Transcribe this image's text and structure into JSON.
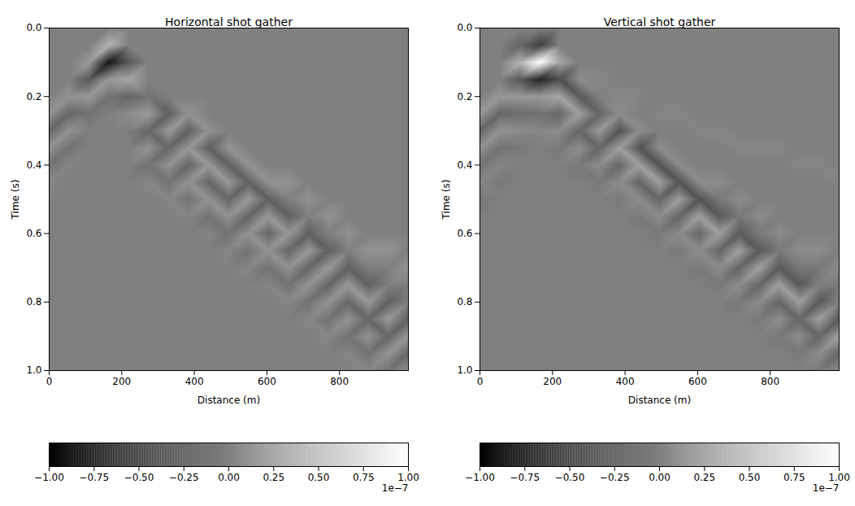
{
  "chart_data": [
    {
      "type": "heatmap",
      "title": "Horizontal shot gather",
      "x_label": "Distance (m)",
      "y_label": "Time (s)",
      "x": [
        0,
        55,
        110,
        165,
        220,
        275,
        330,
        385,
        440,
        495,
        550,
        605,
        660,
        715,
        770,
        825,
        880,
        935,
        990
      ],
      "y": [
        0,
        0.05,
        0.1,
        0.15,
        0.2,
        0.25,
        0.3,
        0.35,
        0.4,
        0.45,
        0.5,
        0.55,
        0.6,
        0.65,
        0.7,
        0.75,
        0.8,
        0.85,
        0.9,
        0.95,
        1.0
      ],
      "values": [
        [
          0,
          0,
          0,
          0,
          0,
          0,
          0,
          0,
          0,
          0,
          0,
          0,
          0,
          0,
          0,
          0,
          0,
          0,
          0
        ],
        [
          0,
          0,
          0,
          4e-08,
          0,
          0,
          0,
          0,
          0,
          0,
          0,
          0,
          0,
          0,
          0,
          0,
          0,
          0,
          0
        ],
        [
          0,
          0,
          2e-08,
          -8e-08,
          -3e-08,
          0,
          0,
          0,
          0,
          0,
          0,
          0,
          0,
          0,
          0,
          0,
          0,
          0,
          0
        ],
        [
          0,
          0,
          -3e-08,
          2e-08,
          3e-08,
          0,
          0,
          0,
          0,
          0,
          0,
          0,
          0,
          0,
          0,
          0,
          0,
          0,
          0
        ],
        [
          0,
          1.5e-08,
          2e-08,
          -1e-08,
          -2e-08,
          -1e-08,
          0,
          0,
          0,
          0,
          0,
          0,
          0,
          0,
          0,
          0,
          0,
          0,
          0
        ],
        [
          1.5e-08,
          -2e-08,
          -1e-08,
          0,
          1e-08,
          2e-08,
          -2.5e-08,
          1.5e-08,
          0,
          0,
          0,
          0,
          0,
          0,
          0,
          0,
          0,
          0,
          0
        ],
        [
          -2e-08,
          1.5e-08,
          0,
          0,
          0,
          -2e-08,
          2e-08,
          -2.5e-08,
          1.5e-08,
          0,
          0,
          0,
          0,
          0,
          0,
          0,
          0,
          0,
          0
        ],
        [
          1.5e-08,
          -1e-08,
          0,
          0,
          0,
          1.5e-08,
          -2e-08,
          2e-08,
          -2.5e-08,
          1.5e-08,
          0,
          0,
          0,
          0,
          0,
          0,
          0,
          0,
          0
        ],
        [
          -1e-08,
          5e-09,
          0,
          0,
          0,
          -1e-08,
          1.5e-08,
          -2e-08,
          2e-08,
          -2.5e-08,
          1.5e-08,
          0,
          0,
          0,
          0,
          0,
          0,
          0,
          0
        ],
        [
          5e-09,
          0,
          0,
          0,
          0,
          5e-09,
          -1e-08,
          1.5e-08,
          -2e-08,
          2e-08,
          -2.5e-08,
          1.5e-08,
          1.5e-08,
          0,
          0,
          0,
          0,
          0,
          0
        ],
        [
          0,
          0,
          0,
          0,
          0,
          0,
          5e-09,
          -1e-08,
          1.5e-08,
          -2e-08,
          2e-08,
          -2.5e-08,
          0,
          1.5e-08,
          0,
          0,
          0,
          0,
          0
        ],
        [
          0,
          0,
          0,
          0,
          0,
          0,
          0,
          5e-09,
          -1e-08,
          1.5e-08,
          -2e-08,
          2e-08,
          -2.5e-08,
          0,
          1.5e-08,
          0,
          0,
          0,
          0
        ],
        [
          0,
          0,
          0,
          0,
          0,
          0,
          0,
          0,
          5e-09,
          -1e-08,
          1.5e-08,
          -2e-08,
          2e-08,
          -2.5e-08,
          0,
          1.5e-08,
          0,
          0,
          0
        ],
        [
          0,
          0,
          0,
          0,
          0,
          0,
          0,
          0,
          0,
          5e-09,
          -1e-08,
          1.5e-08,
          -2e-08,
          2e-08,
          -2.5e-08,
          0,
          1.5e-08,
          1.5e-08,
          0
        ],
        [
          0,
          0,
          0,
          0,
          0,
          0,
          0,
          0,
          0,
          0,
          5e-09,
          -1e-08,
          1.5e-08,
          -2e-08,
          2e-08,
          -2.5e-08,
          0,
          0,
          1.5e-08
        ],
        [
          0,
          0,
          0,
          0,
          0,
          0,
          0,
          0,
          0,
          0,
          0,
          5e-09,
          -1e-08,
          1.5e-08,
          -2e-08,
          2e-08,
          -2.5e-08,
          0,
          0
        ],
        [
          0,
          0,
          0,
          0,
          0,
          0,
          0,
          0,
          0,
          0,
          0,
          0,
          5e-09,
          -1e-08,
          1.5e-08,
          -2e-08,
          2e-08,
          -2.5e-08,
          0
        ],
        [
          0,
          0,
          0,
          0,
          0,
          0,
          0,
          0,
          0,
          0,
          0,
          0,
          0,
          5e-09,
          -1e-08,
          1.5e-08,
          -2e-08,
          2e-08,
          -2.5e-08
        ],
        [
          0,
          0,
          0,
          0,
          0,
          0,
          0,
          0,
          0,
          0,
          0,
          0,
          0,
          0,
          5e-09,
          -1e-08,
          1.5e-08,
          -2e-08,
          2e-08
        ],
        [
          0,
          0,
          0,
          0,
          0,
          0,
          0,
          0,
          0,
          0,
          0,
          0,
          0,
          0,
          0,
          5e-09,
          -1e-08,
          1.5e-08,
          -2e-08
        ],
        [
          0,
          0,
          0,
          0,
          0,
          0,
          0,
          0,
          0,
          0,
          0,
          0,
          0,
          0,
          0,
          0,
          5e-09,
          -1e-08,
          1.5e-08
        ]
      ],
      "xlim": [
        0,
        990
      ],
      "ylim": [
        1.0,
        0.0
      ],
      "xticks": [
        0,
        200,
        400,
        600,
        800
      ],
      "yticks": [
        {
          "value": 0,
          "label": "0.0"
        },
        {
          "value": 0.2,
          "label": "0.2"
        },
        {
          "value": 0.4,
          "label": "0.4"
        },
        {
          "value": 0.6,
          "label": "0.6"
        },
        {
          "value": 0.8,
          "label": "0.8"
        },
        {
          "value": 1.0,
          "label": "1.0"
        }
      ],
      "colorbar": {
        "range": [
          -1e-07,
          1e-07
        ],
        "colors": [
          "#000000",
          "#ffffff"
        ],
        "offset_label": "1e−7",
        "ticks": [
          {
            "value": -1e-07,
            "label": "−1.00"
          },
          {
            "value": -7.5e-08,
            "label": "−0.75"
          },
          {
            "value": -5e-08,
            "label": "−0.50"
          },
          {
            "value": -2.5e-08,
            "label": "−0.25"
          },
          {
            "value": 0,
            "label": "0.00"
          },
          {
            "value": 2.5e-08,
            "label": "0.25"
          },
          {
            "value": 5e-08,
            "label": "0.50"
          },
          {
            "value": 7.5e-08,
            "label": "0.75"
          },
          {
            "value": 1e-07,
            "label": "1.00"
          }
        ]
      }
    },
    {
      "type": "heatmap",
      "title": "Vertical shot gather",
      "x_label": "Distance (m)",
      "y_label": "Time (s)",
      "x": [
        0,
        55,
        110,
        165,
        220,
        275,
        330,
        385,
        440,
        495,
        550,
        605,
        660,
        715,
        770,
        825,
        880,
        935,
        990
      ],
      "y": [
        0,
        0.05,
        0.1,
        0.15,
        0.2,
        0.25,
        0.3,
        0.35,
        0.4,
        0.45,
        0.5,
        0.55,
        0.6,
        0.65,
        0.7,
        0.75,
        0.8,
        0.85,
        0.9,
        0.95,
        1.0
      ],
      "values": [
        [
          0,
          0,
          0,
          0,
          0,
          0,
          0,
          0,
          0,
          0,
          0,
          0,
          0,
          0,
          0,
          0,
          0,
          0,
          0
        ],
        [
          0,
          0,
          -2e-08,
          -5e-08,
          0,
          0,
          0,
          0,
          0,
          0,
          0,
          0,
          0,
          0,
          0,
          0,
          0,
          0,
          0
        ],
        [
          0,
          0,
          4e-08,
          1e-07,
          3e-08,
          0,
          0,
          0,
          0,
          0,
          0,
          0,
          0,
          0,
          0,
          0,
          0,
          0,
          0
        ],
        [
          0,
          0,
          -3e-08,
          -7e-08,
          -4e-08,
          1e-08,
          5e-09,
          0,
          0,
          0,
          0,
          0,
          0,
          0,
          0,
          0,
          0,
          0,
          0
        ],
        [
          0,
          2e-08,
          2e-08,
          2e-08,
          3e-08,
          -3e-08,
          0,
          5e-09,
          5e-09,
          0,
          0,
          0,
          0,
          0,
          0,
          0,
          0,
          0,
          0
        ],
        [
          2e-08,
          -2e-08,
          -1.5e-08,
          -1e-08,
          -2e-08,
          2.5e-08,
          -2e-08,
          1e-08,
          0,
          5e-09,
          5e-09,
          0,
          0,
          0,
          0,
          0,
          0,
          0,
          0
        ],
        [
          -2e-08,
          1.5e-08,
          1e-08,
          5e-09,
          1e-08,
          -2e-08,
          2e-08,
          -3.5e-08,
          1e-08,
          0,
          0,
          5e-09,
          5e-09,
          0,
          0,
          0,
          0,
          0,
          0
        ],
        [
          1.5e-08,
          -1e-08,
          -5e-09,
          0,
          -5e-09,
          1e-08,
          -2e-08,
          2.5e-08,
          -3.5e-08,
          1e-08,
          0,
          0,
          0,
          5e-09,
          5e-09,
          5e-09,
          0,
          0,
          0
        ],
        [
          -1e-08,
          5e-09,
          0,
          0,
          0,
          -5e-09,
          1e-08,
          -2e-08,
          2.5e-08,
          -3.5e-08,
          1e-08,
          0,
          0,
          0,
          0,
          0,
          5e-09,
          5e-09,
          0
        ],
        [
          5e-09,
          -5e-09,
          0,
          0,
          0,
          0,
          -5e-09,
          1e-08,
          -2e-08,
          2.5e-08,
          -3.5e-08,
          1e-08,
          1e-08,
          0,
          0,
          0,
          0,
          0,
          5e-09
        ],
        [
          -5e-09,
          0,
          0,
          0,
          0,
          0,
          0,
          -5e-09,
          1e-08,
          -2e-08,
          2.5e-08,
          -3.5e-08,
          -5e-09,
          1e-08,
          0,
          0,
          0,
          0,
          0
        ],
        [
          0,
          0,
          0,
          0,
          0,
          0,
          0,
          0,
          -5e-09,
          1e-08,
          -2e-08,
          2.5e-08,
          -3e-08,
          -5e-09,
          1e-08,
          0,
          0,
          0,
          0
        ],
        [
          0,
          0,
          0,
          0,
          0,
          0,
          0,
          0,
          0,
          -5e-09,
          1e-08,
          -2e-08,
          2.5e-08,
          -3e-08,
          -5e-09,
          1e-08,
          0,
          0,
          0
        ],
        [
          0,
          0,
          0,
          0,
          0,
          0,
          0,
          0,
          0,
          0,
          -5e-09,
          1e-08,
          -2e-08,
          2.5e-08,
          -3e-08,
          -5e-09,
          1e-08,
          1e-08,
          0
        ],
        [
          0,
          0,
          0,
          0,
          0,
          0,
          0,
          0,
          0,
          0,
          0,
          -5e-09,
          1e-08,
          -2e-08,
          2.5e-08,
          -3e-08,
          -5e-09,
          -5e-09,
          1e-08
        ],
        [
          0,
          0,
          0,
          0,
          0,
          0,
          0,
          0,
          0,
          0,
          0,
          0,
          -5e-09,
          1e-08,
          -2e-08,
          2.5e-08,
          -3e-08,
          0,
          -5e-09
        ],
        [
          0,
          0,
          0,
          0,
          0,
          0,
          0,
          0,
          0,
          0,
          0,
          0,
          0,
          -5e-09,
          1e-08,
          -2e-08,
          2.5e-08,
          -3e-08,
          0
        ],
        [
          0,
          0,
          0,
          0,
          0,
          0,
          0,
          0,
          0,
          0,
          0,
          0,
          0,
          0,
          -5e-09,
          1e-08,
          -2e-08,
          2.5e-08,
          -3e-08
        ],
        [
          0,
          0,
          0,
          0,
          0,
          0,
          0,
          0,
          0,
          0,
          0,
          0,
          0,
          0,
          0,
          -5e-09,
          1e-08,
          -2e-08,
          2.5e-08
        ],
        [
          0,
          0,
          0,
          0,
          0,
          0,
          0,
          0,
          0,
          0,
          0,
          0,
          0,
          0,
          0,
          0,
          -5e-09,
          1e-08,
          -2e-08
        ],
        [
          0,
          0,
          0,
          0,
          0,
          0,
          0,
          0,
          0,
          0,
          0,
          0,
          0,
          0,
          0,
          0,
          0,
          -5e-09,
          1e-08
        ]
      ],
      "xlim": [
        0,
        990
      ],
      "ylim": [
        1.0,
        0.0
      ],
      "xticks": [
        0,
        200,
        400,
        600,
        800
      ],
      "yticks": [
        {
          "value": 0,
          "label": "0.0"
        },
        {
          "value": 0.2,
          "label": "0.2"
        },
        {
          "value": 0.4,
          "label": "0.4"
        },
        {
          "value": 0.6,
          "label": "0.6"
        },
        {
          "value": 0.8,
          "label": "0.8"
        },
        {
          "value": 1.0,
          "label": "1.0"
        }
      ],
      "colorbar": {
        "range": [
          -1e-07,
          1e-07
        ],
        "colors": [
          "#000000",
          "#ffffff"
        ],
        "offset_label": "1e−7",
        "ticks": [
          {
            "value": -1e-07,
            "label": "−1.00"
          },
          {
            "value": -7.5e-08,
            "label": "−0.75"
          },
          {
            "value": -5e-08,
            "label": "−0.50"
          },
          {
            "value": -2.5e-08,
            "label": "−0.25"
          },
          {
            "value": 0,
            "label": "0.00"
          },
          {
            "value": 2.5e-08,
            "label": "0.25"
          },
          {
            "value": 5e-08,
            "label": "0.50"
          },
          {
            "value": 7.5e-08,
            "label": "0.75"
          },
          {
            "value": 1e-07,
            "label": "1.00"
          }
        ]
      }
    }
  ]
}
